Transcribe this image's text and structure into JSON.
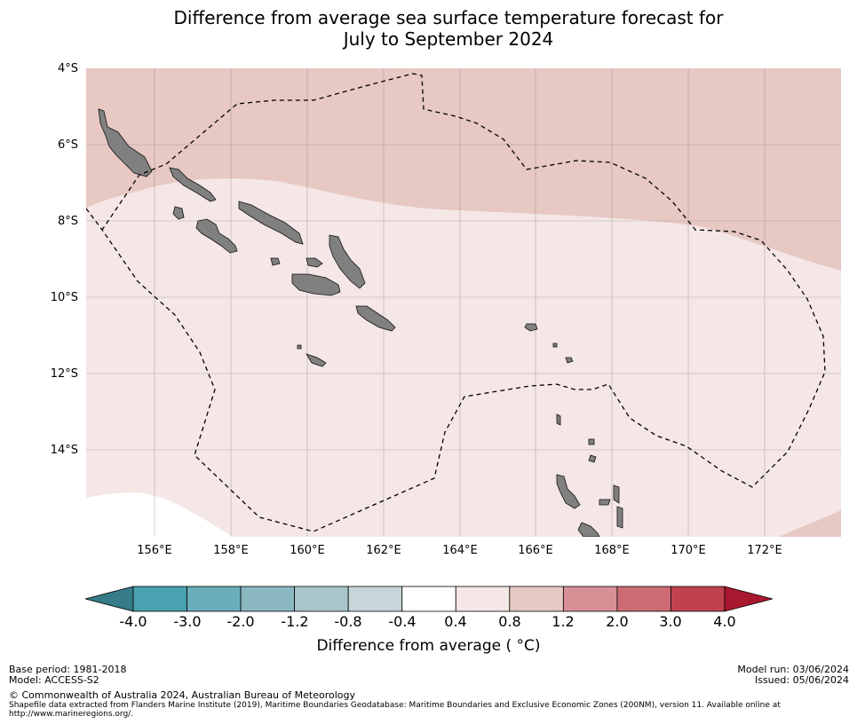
{
  "title_line1": "Difference from average sea surface temperature forecast for",
  "title_line2": "July to September 2024",
  "lat_labels": [
    "4°S",
    "6°S",
    "8°S",
    "10°S",
    "12°S",
    "14°S"
  ],
  "lon_labels": [
    "156°E",
    "158°E",
    "160°E",
    "162°E",
    "164°E",
    "166°E",
    "168°E",
    "170°E",
    "172°E"
  ],
  "colorbar": {
    "ticks": [
      "-4.0",
      "-3.0",
      "-2.0",
      "-1.2",
      "-0.8",
      "-0.4",
      "0.4",
      "0.8",
      "1.2",
      "2.0",
      "3.0",
      "4.0"
    ],
    "colors": [
      "#4aa1b0",
      "#6aaeb9",
      "#8bb8c0",
      "#a8c5ca",
      "#c8d6da",
      "#ffffff",
      "#f4e7e6",
      "#e7c8c3",
      "#d88f95",
      "#cc6b74",
      "#c0424f"
    ],
    "under_color": "#357b88",
    "over_color": "#a8182f",
    "label": "Difference from average ( °C)"
  },
  "map_colors": {
    "anomaly_0_4_to_0_8": "#f4e7e6",
    "anomaly_0_8_to_1_2": "#e7c8c3",
    "land": "#808080"
  },
  "footer": {
    "base_period": "Base period: 1981-2018",
    "model": "Model: ACCESS-S2",
    "copyright": "© Commonwealth of Australia 2024, Australian Bureau of Meteorology",
    "shapefile": "Shapefile data extracted from Flanders Marine Institute (2019), Maritime Boundaries Geodatabase: Maritime Boundaries and Exclusive Economic Zones (200NM), version 11. Available online at",
    "url": "http://www.marineregions.org/.",
    "model_run": "Model run: 03/06/2024",
    "issued": "Issued: 05/06/2024"
  }
}
